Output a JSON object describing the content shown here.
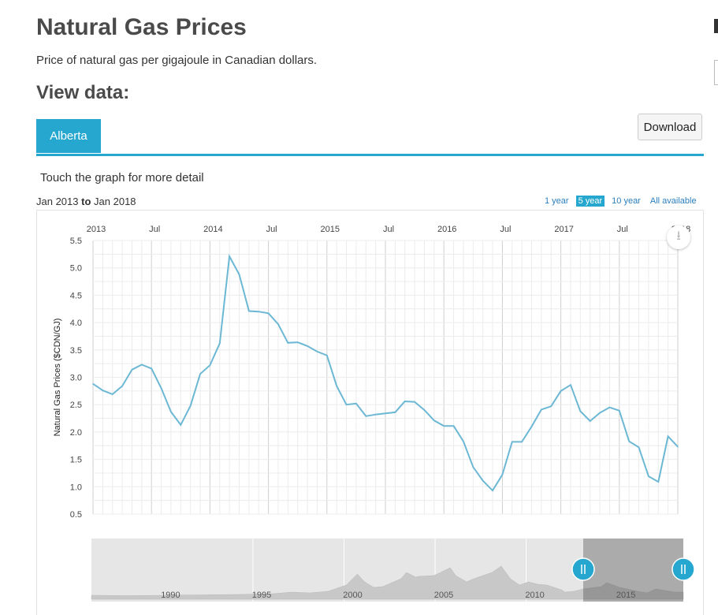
{
  "page": {
    "title": "Natural Gas Prices",
    "subtitle": "Price of natural gas per gigajoule in Canadian dollars.",
    "view_data_title": "View data:",
    "tabs": [
      {
        "label": "Alberta",
        "active": true
      }
    ],
    "download_label": "Download",
    "hint": "Touch the graph for more detail",
    "range_from": "Jan 2013",
    "range_to_word": "to",
    "range_to": "Jan 2018",
    "range_buttons": [
      {
        "label": "1 year",
        "active": false
      },
      {
        "label": "5 year",
        "active": true
      },
      {
        "label": "10 year",
        "active": false
      },
      {
        "label": "All available",
        "active": false
      }
    ],
    "menu_icon": "download-arrow-icon",
    "accent_color": "#26a7cf"
  },
  "chart_data": {
    "type": "line",
    "title": "",
    "xlabel": "",
    "ylabel": "Natural Gas Prices ($CDN/GJ)",
    "ylim": [
      0.5,
      5.5
    ],
    "yticks": [
      "0.5",
      "1.0",
      "1.5",
      "2.0",
      "2.5",
      "3.0",
      "3.5",
      "4.0",
      "4.5",
      "5.0",
      "5.5"
    ],
    "xlim": [
      "2013-01",
      "2018-01"
    ],
    "xticks": [
      "2013",
      "Jul",
      "2014",
      "Jul",
      "2015",
      "Jul",
      "2016",
      "Jul",
      "2017",
      "Jul",
      "2018"
    ],
    "grid": true,
    "line_color": "#6cb8d4",
    "series": [
      {
        "x": [
          "2013-01",
          "2013-02",
          "2013-03",
          "2013-04",
          "2013-05",
          "2013-06",
          "2013-07",
          "2013-08",
          "2013-09",
          "2013-10",
          "2013-11",
          "2013-12",
          "2014-01",
          "2014-02",
          "2014-03",
          "2014-04",
          "2014-05",
          "2014-06",
          "2014-07",
          "2014-08",
          "2014-09",
          "2014-10",
          "2014-11",
          "2014-12",
          "2015-01",
          "2015-02",
          "2015-03",
          "2015-04",
          "2015-05",
          "2015-06",
          "2015-07",
          "2015-08",
          "2015-09",
          "2015-10",
          "2015-11",
          "2015-12",
          "2016-01",
          "2016-02",
          "2016-03",
          "2016-04",
          "2016-05",
          "2016-06",
          "2016-07",
          "2016-08",
          "2016-09",
          "2016-10",
          "2016-11",
          "2016-12",
          "2017-01",
          "2017-02",
          "2017-03",
          "2017-04",
          "2017-05",
          "2017-06",
          "2017-07",
          "2017-08",
          "2017-09",
          "2017-10",
          "2017-11",
          "2017-12",
          "2018-01"
        ],
        "values": [
          2.88,
          2.76,
          2.69,
          2.84,
          3.14,
          3.23,
          3.16,
          2.8,
          2.37,
          2.13,
          2.48,
          3.06,
          3.22,
          3.62,
          5.21,
          4.88,
          4.21,
          4.2,
          4.17,
          3.97,
          3.63,
          3.64,
          3.57,
          3.47,
          3.4,
          2.84,
          2.5,
          2.52,
          2.29,
          2.32,
          2.34,
          2.36,
          2.56,
          2.55,
          2.4,
          2.21,
          2.11,
          2.11,
          1.83,
          1.36,
          1.11,
          0.93,
          1.22,
          1.82,
          1.82,
          2.1,
          2.41,
          2.47,
          2.75,
          2.86,
          2.38,
          2.2,
          2.35,
          2.45,
          2.39,
          1.83,
          1.72,
          1.19,
          1.09,
          1.92,
          1.73
        ]
      }
    ],
    "navigator": {
      "labels": [
        "1990",
        "1995",
        "2000",
        "2005",
        "2010",
        "2015"
      ],
      "selected_range": [
        "2013",
        "2018"
      ]
    }
  }
}
